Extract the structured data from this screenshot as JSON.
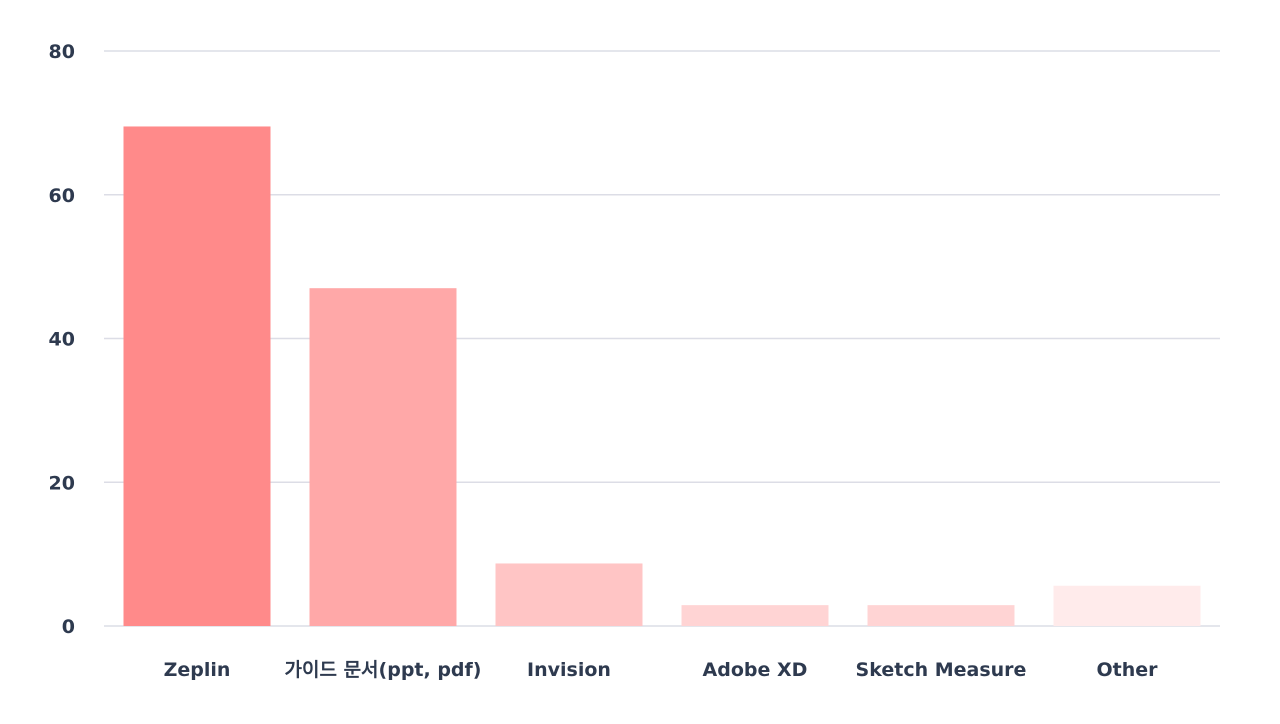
{
  "chart_data": {
    "type": "bar",
    "title": "",
    "xlabel": "",
    "ylabel": "",
    "categories": [
      "Zeplin",
      "가이드 문서(ppt, pdf)",
      "Invision",
      "Adobe XD",
      "Sketch Measure",
      "Other"
    ],
    "values": [
      69.5,
      47,
      8.7,
      2.9,
      2.9,
      5.6
    ],
    "colors": [
      "#ff8a8a",
      "#ffa8a8",
      "#ffc5c5",
      "#ffd4d4",
      "#ffd4d4",
      "#ffebeb"
    ],
    "ylim": [
      0,
      80
    ],
    "yticks": [
      0,
      20,
      40,
      60,
      80
    ],
    "grid": true,
    "grid_color": "#dcdde6",
    "text_color": "#2e3a4f"
  }
}
